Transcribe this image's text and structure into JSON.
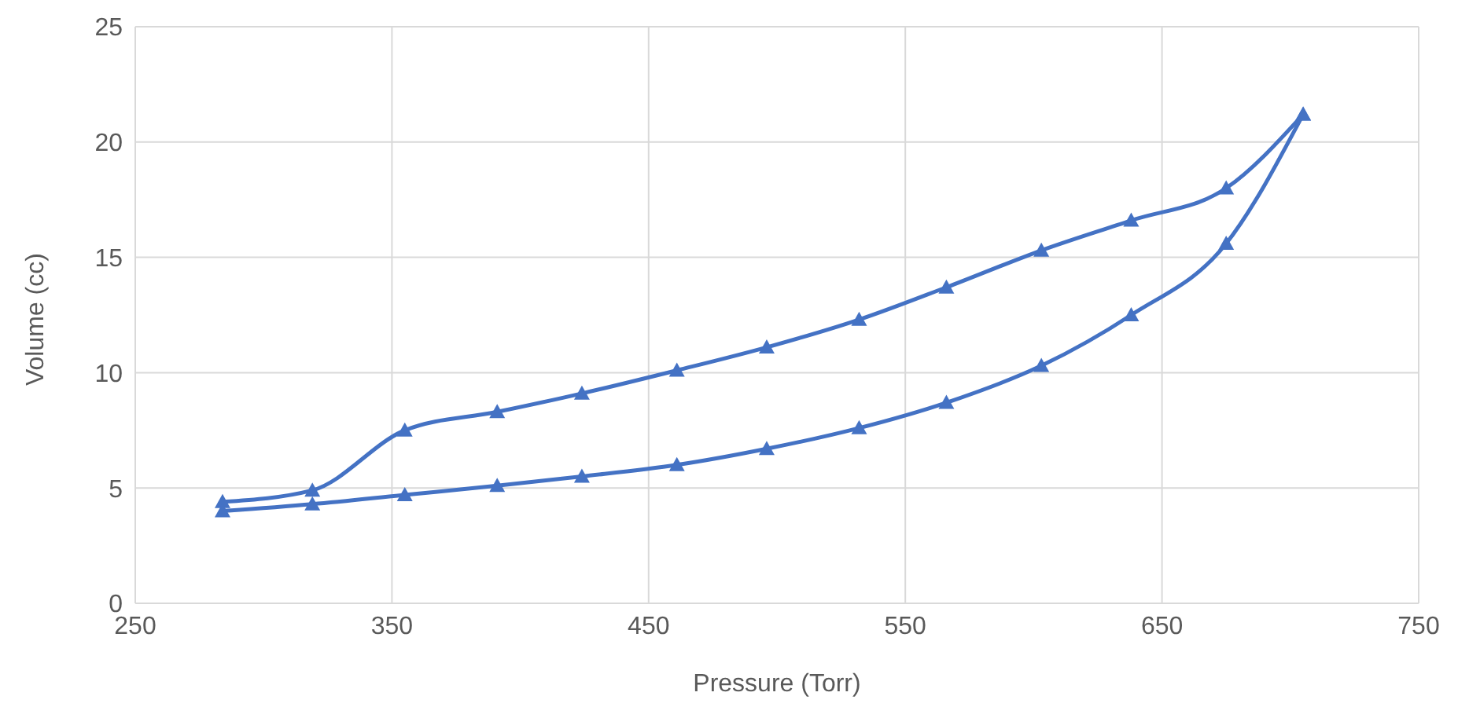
{
  "chart_data": {
    "type": "line",
    "xlabel": "Pressure (Torr)",
    "ylabel": "Volume (cc)",
    "xlim": [
      250,
      750
    ],
    "xticks": [
      250,
      350,
      450,
      550,
      650,
      750
    ],
    "ylim": [
      0,
      25
    ],
    "yticks": [
      0,
      5,
      10,
      15,
      20,
      25
    ],
    "grid": true,
    "legend": false,
    "marker": "triangle",
    "line_style": "solid",
    "series": [
      {
        "color": "#4472c4",
        "x": [
          284,
          319,
          355,
          391,
          424,
          461,
          496,
          532,
          566,
          603,
          638,
          675,
          705
        ],
        "values": [
          4.4,
          4.9,
          7.5,
          8.3,
          9.1,
          10.1,
          11.1,
          12.3,
          13.7,
          15.3,
          16.6,
          18.0,
          21.2
        ]
      },
      {
        "color": "#4472c4",
        "x": [
          284,
          319,
          355,
          391,
          424,
          461,
          496,
          532,
          566,
          603,
          638,
          675,
          705
        ],
        "values": [
          4.0,
          4.3,
          4.7,
          5.1,
          5.5,
          6.0,
          6.7,
          7.6,
          8.7,
          10.3,
          12.5,
          15.6,
          21.2
        ]
      }
    ]
  }
}
